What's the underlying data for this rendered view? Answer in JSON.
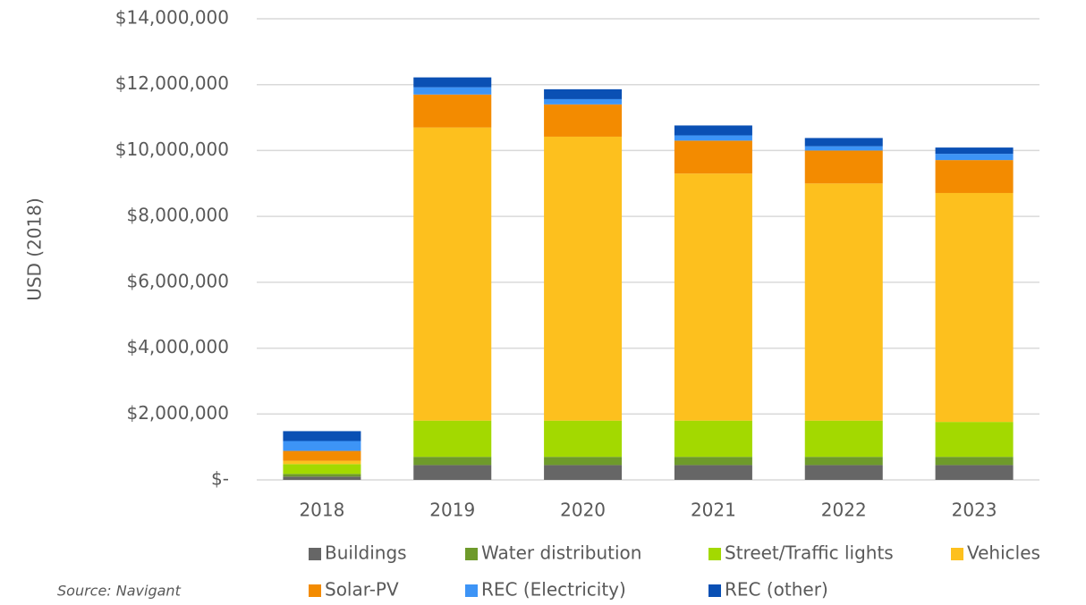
{
  "chart_data": {
    "type": "stacked_bar",
    "y_label": "USD (2018)",
    "source": "Source: Navigant",
    "categories": [
      "2018",
      "2019",
      "2020",
      "2021",
      "2022",
      "2023"
    ],
    "series": [
      {
        "name": "Buildings",
        "color": "#666666",
        "values": [
          100000,
          450000,
          450000,
          450000,
          450000,
          450000
        ]
      },
      {
        "name": "Water distribution",
        "color": "#6e9a2b",
        "values": [
          80000,
          250000,
          250000,
          250000,
          250000,
          250000
        ]
      },
      {
        "name": "Street/Traffic lights",
        "color": "#a3d900",
        "values": [
          300000,
          1100000,
          1100000,
          1100000,
          1100000,
          1060000
        ]
      },
      {
        "name": "Vehicles",
        "color": "#fdc01e",
        "values": [
          100000,
          8900000,
          8620000,
          7500000,
          7200000,
          6950000
        ]
      },
      {
        "name": "Solar-PV",
        "color": "#f38b00",
        "values": [
          300000,
          1000000,
          980000,
          1000000,
          1000000,
          1000000
        ]
      },
      {
        "name": "REC (Electricity)",
        "color": "#3d94f6",
        "values": [
          300000,
          220000,
          160000,
          160000,
          130000,
          190000
        ]
      },
      {
        "name": "REC (other)",
        "color": "#0a50b4",
        "values": [
          300000,
          300000,
          300000,
          300000,
          250000,
          190000
        ]
      }
    ],
    "ylim": [
      0,
      14000000
    ],
    "yticks": [
      {
        "value": 0,
        "label": "$-"
      },
      {
        "value": 2000000,
        "label": "$2,000,000"
      },
      {
        "value": 4000000,
        "label": "$4,000,000"
      },
      {
        "value": 6000000,
        "label": "$6,000,000"
      },
      {
        "value": 8000000,
        "label": "$8,000,000"
      },
      {
        "value": 10000000,
        "label": "$10,000,000"
      },
      {
        "value": 12000000,
        "label": "$12,000,000"
      },
      {
        "value": 14000000,
        "label": "$14,000,000"
      }
    ],
    "grid": true
  }
}
